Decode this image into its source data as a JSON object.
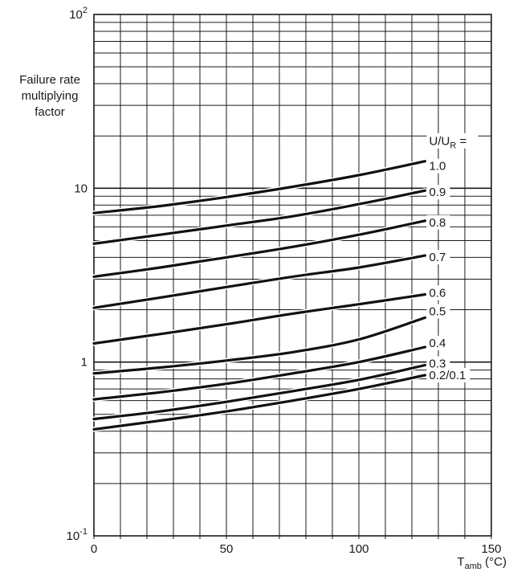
{
  "chart_data": {
    "type": "line",
    "ylabel_lines": [
      "Failure rate",
      "multiplying",
      "factor"
    ],
    "xlabel": {
      "base": "T",
      "sub": "amb",
      "unit": " (°C)"
    },
    "series_heading": {
      "base": "U/U",
      "sub": "R",
      "suffix": " ="
    },
    "x_ticks": [
      "0",
      "50",
      "100",
      "150"
    ],
    "y_ticks": [
      {
        "base": "10",
        "exp": "2"
      },
      {
        "base": "10",
        "exp": ""
      },
      {
        "base": "1",
        "exp": ""
      },
      {
        "base": "10",
        "exp": "-1"
      }
    ],
    "xlim": [
      0,
      150
    ],
    "ylim": [
      0.1,
      100
    ],
    "y_scale": "log",
    "grid": true,
    "x": [
      0,
      25,
      50,
      75,
      100,
      125
    ],
    "series": [
      {
        "name": "1.0",
        "values": [
          7.2,
          7.9,
          8.9,
          10.2,
          11.9,
          14.3
        ]
      },
      {
        "name": "0.9",
        "values": [
          4.8,
          5.4,
          6.1,
          6.9,
          8.1,
          9.7
        ]
      },
      {
        "name": "0.8",
        "values": [
          3.1,
          3.5,
          4.0,
          4.6,
          5.4,
          6.5
        ]
      },
      {
        "name": "0.7",
        "values": [
          2.05,
          2.35,
          2.7,
          3.1,
          3.5,
          4.1
        ]
      },
      {
        "name": "0.6",
        "values": [
          1.28,
          1.45,
          1.65,
          1.9,
          2.15,
          2.45
        ]
      },
      {
        "name": "0.5",
        "values": [
          0.86,
          0.93,
          1.02,
          1.14,
          1.35,
          1.8
        ]
      },
      {
        "name": "0.4",
        "values": [
          0.61,
          0.67,
          0.75,
          0.86,
          1.0,
          1.22
        ]
      },
      {
        "name": "0.3",
        "values": [
          0.47,
          0.52,
          0.59,
          0.68,
          0.79,
          0.96
        ]
      },
      {
        "name": "0.2/0.1",
        "values": [
          0.41,
          0.46,
          0.52,
          0.6,
          0.7,
          0.84
        ]
      }
    ],
    "series_label_offsets_y": [
      6,
      2,
      2,
      2,
      -2,
      -8,
      -5,
      -2,
      0
    ]
  }
}
